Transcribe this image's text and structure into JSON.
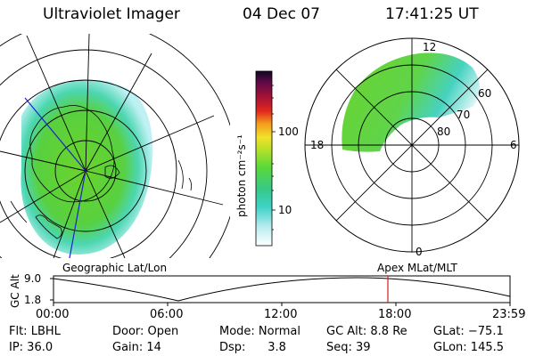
{
  "header": {
    "title": "Ultraviolet Imager",
    "date": "04 Dec 07",
    "time": "17:41:25 UT"
  },
  "colorbar": {
    "unit_label": "photon cm⁻²s⁻¹",
    "ticks": [
      "100",
      "10"
    ]
  },
  "polar_plot": {
    "mlt_labels": [
      "12",
      "18",
      "6",
      "0"
    ],
    "mlat_labels": [
      "60",
      "70",
      "80"
    ]
  },
  "panel_labels": {
    "left": "Geographic Lat/Lon",
    "right": "Apex MLat/MLT"
  },
  "altitude_plot": {
    "ylabel": "GC Alt",
    "yticks": [
      "9.0",
      "1.8"
    ],
    "xticks": [
      "00:00",
      "06:00",
      "12:00",
      "18:00",
      "23:59"
    ],
    "current_time": "17:41",
    "marker_color": "#cc2222"
  },
  "footer": {
    "rows": [
      [
        "Flt: LBHL",
        "Door: Open",
        "Mode: Normal",
        "GC Alt: 8.8 Re",
        "GLat: −75.1"
      ],
      [
        "IP: 36.0",
        "Gain: 14",
        "Dsp:      3.8",
        "Seq: 39",
        "GLon: 145.5"
      ]
    ]
  }
}
